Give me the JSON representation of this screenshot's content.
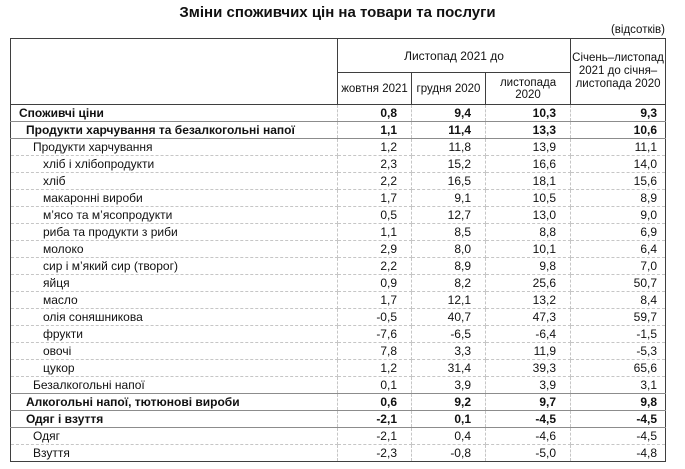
{
  "title": "Зміни споживчих цін на товари та послуги",
  "unit_note": "(відсотків)",
  "colors": {
    "text": "#111111",
    "outer_border": "#3f3f3f",
    "section_rule": "#8c8c8c",
    "grid_dashed": "#c6c6c6",
    "background": "#ffffff"
  },
  "table": {
    "group_header": "Листопад 2021 до",
    "sub_headers": [
      "жовтня 2021",
      "грудня 2020",
      "листопада 2020"
    ],
    "period_header": "Січень–листопад 2021 до січня–листопада 2020",
    "rows": [
      {
        "label": "Споживчі ціни",
        "indent": 0,
        "bold": true,
        "rule": "solid",
        "values": [
          "0,8",
          "9,4",
          "10,3",
          "9,3"
        ]
      },
      {
        "label": "Продукти харчування та безалкогольні напої",
        "indent": 1,
        "bold": true,
        "rule": "solid",
        "values": [
          "1,1",
          "11,4",
          "13,3",
          "10,6"
        ]
      },
      {
        "label": "Продукти харчування",
        "indent": 2,
        "bold": false,
        "rule": "dashed",
        "values": [
          "1,2",
          "11,8",
          "13,9",
          "11,1"
        ]
      },
      {
        "label": "хліб і хлібопродукти",
        "indent": 3,
        "bold": false,
        "rule": "dashed",
        "values": [
          "2,3",
          "15,2",
          "16,6",
          "14,0"
        ]
      },
      {
        "label": "хліб",
        "indent": 3,
        "bold": false,
        "rule": "dashed",
        "values": [
          "2,2",
          "16,5",
          "18,1",
          "15,6"
        ]
      },
      {
        "label": "макаронні вироби",
        "indent": 3,
        "bold": false,
        "rule": "dashed",
        "values": [
          "1,7",
          "9,1",
          "10,5",
          "8,9"
        ]
      },
      {
        "label": "м’ясо та м’ясопродукти",
        "indent": 3,
        "bold": false,
        "rule": "dashed",
        "values": [
          "0,5",
          "12,7",
          "13,0",
          "9,0"
        ]
      },
      {
        "label": "риба та продукти з риби",
        "indent": 3,
        "bold": false,
        "rule": "dashed",
        "values": [
          "1,1",
          "8,5",
          "8,8",
          "6,9"
        ]
      },
      {
        "label": "молоко",
        "indent": 3,
        "bold": false,
        "rule": "dashed",
        "values": [
          "2,9",
          "8,0",
          "10,1",
          "6,4"
        ]
      },
      {
        "label": "сир і м’який сир (творог)",
        "indent": 3,
        "bold": false,
        "rule": "dashed",
        "values": [
          "2,2",
          "8,9",
          "9,8",
          "7,0"
        ]
      },
      {
        "label": "яйця",
        "indent": 3,
        "bold": false,
        "rule": "dashed",
        "values": [
          "0,9",
          "8,2",
          "25,6",
          "50,7"
        ]
      },
      {
        "label": "масло",
        "indent": 3,
        "bold": false,
        "rule": "dashed",
        "values": [
          "1,7",
          "12,1",
          "13,2",
          "8,4"
        ]
      },
      {
        "label": "олія соняшникова",
        "indent": 3,
        "bold": false,
        "rule": "dashed",
        "values": [
          "-0,5",
          "40,7",
          "47,3",
          "59,7"
        ]
      },
      {
        "label": "фрукти",
        "indent": 3,
        "bold": false,
        "rule": "dashed",
        "values": [
          "-7,6",
          "-6,5",
          "-6,4",
          "-1,5"
        ]
      },
      {
        "label": "овочі",
        "indent": 3,
        "bold": false,
        "rule": "dashed",
        "values": [
          "7,8",
          "3,3",
          "11,9",
          "-5,3"
        ]
      },
      {
        "label": "цукор",
        "indent": 3,
        "bold": false,
        "rule": "dashed",
        "values": [
          "1,2",
          "31,4",
          "39,3",
          "65,6"
        ]
      },
      {
        "label": "Безалкогольні напої",
        "indent": 2,
        "bold": false,
        "rule": "solid",
        "values": [
          "0,1",
          "3,9",
          "3,9",
          "3,1"
        ]
      },
      {
        "label": "Алкогольні напої, тютюнові вироби",
        "indent": 1,
        "bold": true,
        "rule": "solid",
        "values": [
          "0,6",
          "9,2",
          "9,7",
          "9,8"
        ]
      },
      {
        "label": "Одяг і взуття",
        "indent": 1,
        "bold": true,
        "rule": "solid",
        "values": [
          "-2,1",
          "0,1",
          "-4,5",
          "-4,5"
        ]
      },
      {
        "label": "Одяг",
        "indent": 2,
        "bold": false,
        "rule": "dashed",
        "values": [
          "-2,1",
          "0,4",
          "-4,6",
          "-4,5"
        ]
      },
      {
        "label": "Взуття",
        "indent": 2,
        "bold": false,
        "rule": "dashed",
        "values": [
          "-2,3",
          "-0,8",
          "-5,0",
          "-4,8"
        ]
      }
    ]
  }
}
